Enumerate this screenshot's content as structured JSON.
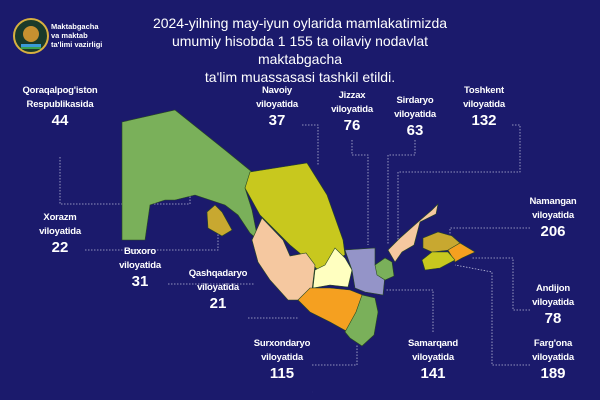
{
  "header": {
    "org_name": [
      "Maktabgacha",
      "va maktab",
      "ta'limi vazirligi"
    ],
    "title": [
      "2024-yilning may-iyun oylarida mamlakatimizda",
      "umumiy hisobda 1 155 ta oilaviy nodavlat maktabgacha",
      "ta'lim muassasasi tashkil etildi."
    ]
  },
  "regions": [
    {
      "name": [
        "Qoraqalpog'iston",
        "Respublikasida"
      ],
      "value": "44",
      "color": "#7ab05a"
    },
    {
      "name": [
        "Navoiy",
        "viloyatida"
      ],
      "value": "37",
      "color": "#c8c81e"
    },
    {
      "name": [
        "Jizzax",
        "viloyatida"
      ],
      "value": "76",
      "color": "#9494c8"
    },
    {
      "name": [
        "Sirdaryo",
        "viloyatida"
      ],
      "value": "63",
      "color": "#7ab05a"
    },
    {
      "name": [
        "Toshkent",
        "viloyatida"
      ],
      "value": "132",
      "color": "#f5c8a0"
    },
    {
      "name": [
        "Namangan",
        "viloyatida"
      ],
      "value": "206",
      "color": "#c8a830"
    },
    {
      "name": [
        "Xorazm",
        "viloyatida"
      ],
      "value": "22",
      "color": "#c8a830"
    },
    {
      "name": [
        "Buxoro",
        "viloyatida"
      ],
      "value": "31",
      "color": "#f5c8a0"
    },
    {
      "name": [
        "Qashqadaryo",
        "viloyatida"
      ],
      "value": "21",
      "color": "#f5a020"
    },
    {
      "name": [
        "Andijon",
        "viloyatida"
      ],
      "value": "78",
      "color": "#f5a020"
    },
    {
      "name": [
        "Surxondaryo",
        "viloyatida"
      ],
      "value": "115",
      "color": "#7ab05a"
    },
    {
      "name": [
        "Samarqand",
        "viloyatida"
      ],
      "value": "141",
      "color": "#ffffc0"
    },
    {
      "name": [
        "Farg'ona",
        "viloyatida"
      ],
      "value": "189",
      "color": "#c8c81e"
    }
  ],
  "colors": {
    "background": "#1b1a6c",
    "text": "#ffffff"
  }
}
